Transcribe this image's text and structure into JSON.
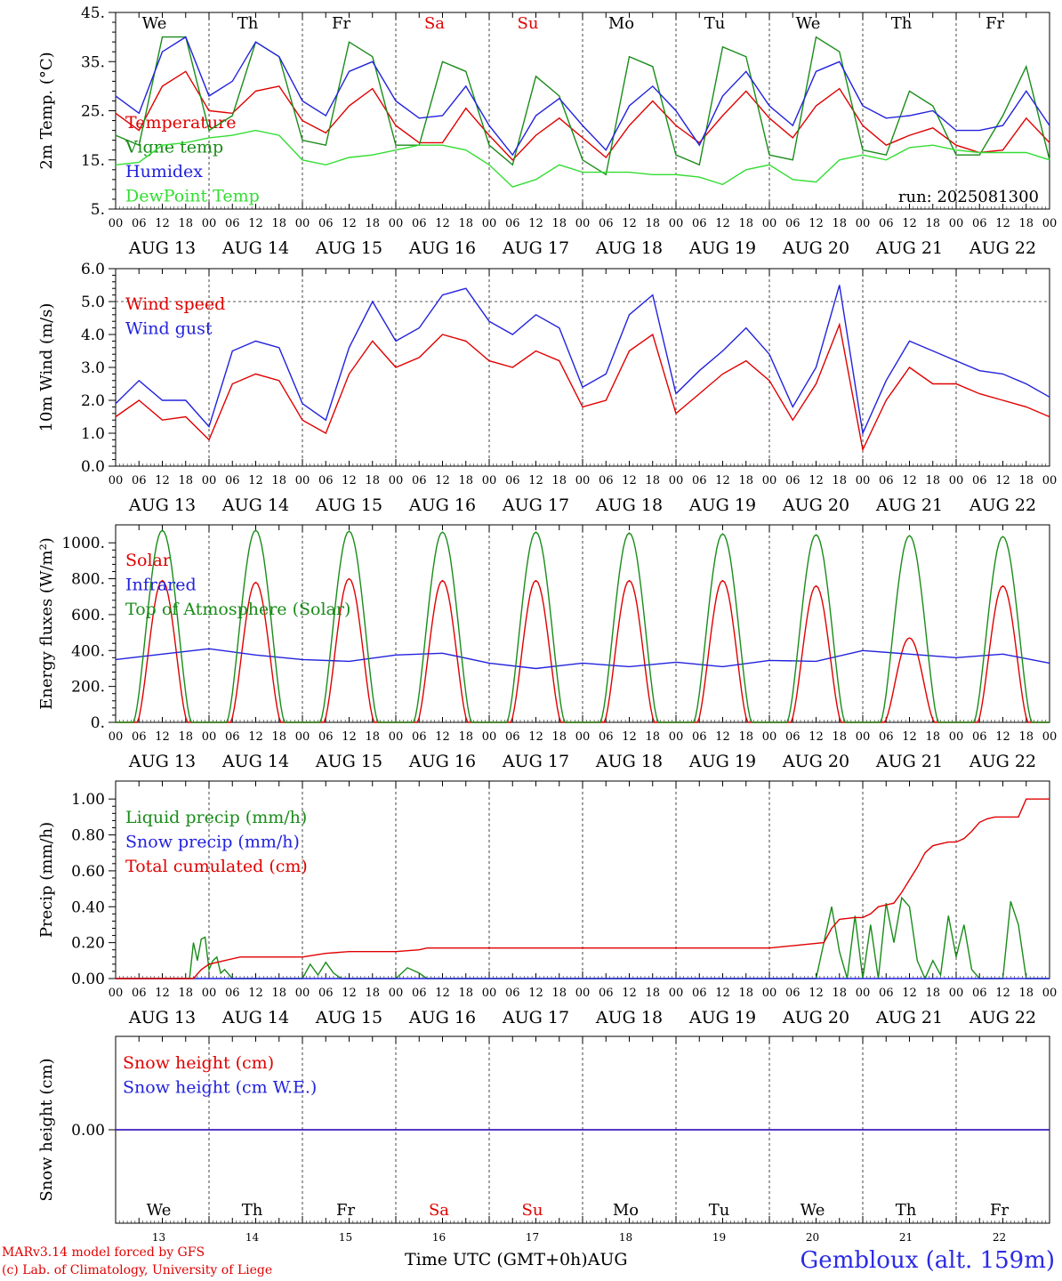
{
  "footer": {
    "model": "MARv3.14 model forced by GFS",
    "lab": "(c) Lab. of Climatology, University of Liege",
    "station": "Gembloux (alt. 159m)",
    "x_title": "Time UTC (GMT+0h)AUG"
  },
  "days": {
    "weekday_top": [
      "We",
      "Th",
      "Fr",
      "Sa",
      "Su",
      "Mo",
      "Tu",
      "We",
      "Th",
      "Fr"
    ],
    "weekday_colors": [
      "#000000",
      "#000000",
      "#000000",
      "#e00000",
      "#e00000",
      "#000000",
      "#000000",
      "#000000",
      "#000000",
      "#000000"
    ],
    "date_labels": [
      "AUG 13",
      "AUG 14",
      "AUG 15",
      "AUG 16",
      "AUG 17",
      "AUG 18",
      "AUG 19",
      "AUG 20",
      "AUG 21",
      "AUG 22"
    ],
    "day_numbers": [
      "13",
      "14",
      "15",
      "16",
      "17",
      "18",
      "19",
      "20",
      "21",
      "22"
    ],
    "hour_labels": [
      "00",
      "06",
      "12",
      "18"
    ],
    "final_hour": "00"
  },
  "chart_data": [
    {
      "type": "line",
      "ylabel": "2m Temp. (°C)",
      "ylim": [
        5,
        45
      ],
      "yticks": [
        "5.",
        "15.",
        "25.",
        "35.",
        "45."
      ],
      "annotation": "run: 2025081300",
      "x_unit": "hours since AUG 13 00 UTC",
      "series": [
        {
          "name": "Temperature",
          "color": "#e00000",
          "x": [
            0,
            6,
            12,
            18,
            24,
            30,
            36,
            42,
            48,
            54,
            60,
            66,
            72,
            78,
            84,
            90,
            96,
            102,
            108,
            114,
            120,
            126,
            132,
            138,
            144,
            150,
            156,
            162,
            168,
            174,
            180,
            186,
            192,
            198,
            204,
            210,
            216,
            222,
            228,
            234,
            240
          ],
          "values": [
            24.5,
            21,
            30,
            33,
            25,
            24.5,
            29,
            30,
            23,
            20.5,
            26,
            29.5,
            22,
            18.5,
            18.5,
            25.5,
            20,
            15,
            20,
            23.5,
            19.5,
            15.5,
            22,
            27,
            22,
            18.5,
            24,
            29,
            23.5,
            19.5,
            26,
            29.5,
            22,
            18,
            20,
            21.5,
            18,
            16.5,
            17,
            23.5,
            18.5
          ]
        },
        {
          "name": "Vigne temp",
          "color": "#1a8c1a",
          "x": [
            0,
            6,
            12,
            18,
            24,
            30,
            36,
            42,
            48,
            54,
            60,
            66,
            72,
            78,
            84,
            90,
            96,
            102,
            108,
            114,
            120,
            126,
            132,
            138,
            144,
            150,
            156,
            162,
            168,
            174,
            180,
            186,
            192,
            198,
            204,
            210,
            216,
            222,
            228,
            234,
            240
          ],
          "values": [
            20,
            18,
            40,
            40,
            21,
            24,
            39,
            36,
            19,
            18,
            39,
            36,
            18,
            18,
            35,
            33,
            18,
            14,
            32,
            28,
            15,
            12,
            36,
            34,
            16,
            14,
            38,
            36,
            16,
            15,
            40,
            37,
            17,
            16,
            29,
            26,
            16,
            16,
            24,
            34,
            15
          ]
        },
        {
          "name": "Humidex",
          "color": "#2222dd",
          "x": [
            0,
            6,
            12,
            18,
            24,
            30,
            36,
            42,
            48,
            54,
            60,
            66,
            72,
            78,
            84,
            90,
            96,
            102,
            108,
            114,
            120,
            126,
            132,
            138,
            144,
            150,
            156,
            162,
            168,
            174,
            180,
            186,
            192,
            198,
            204,
            210,
            216,
            222,
            228,
            234,
            240
          ],
          "values": [
            28,
            24.5,
            37,
            40,
            28,
            31,
            39,
            36,
            27,
            24,
            33,
            35,
            27,
            23.5,
            24,
            30,
            22,
            16,
            24,
            27.5,
            22,
            17,
            26,
            30,
            25,
            18,
            28,
            33,
            26,
            22,
            33,
            35,
            26,
            23.5,
            24,
            25,
            21,
            21,
            22,
            29,
            22
          ]
        },
        {
          "name": "DewPoint Temp",
          "color": "#33dd33",
          "x": [
            0,
            6,
            12,
            18,
            24,
            30,
            36,
            42,
            48,
            54,
            60,
            66,
            72,
            78,
            84,
            90,
            96,
            102,
            108,
            114,
            120,
            126,
            132,
            138,
            144,
            150,
            156,
            162,
            168,
            174,
            180,
            186,
            192,
            198,
            204,
            210,
            216,
            222,
            228,
            234,
            240
          ],
          "values": [
            14,
            14.5,
            18,
            18.5,
            19.5,
            20,
            21,
            20,
            15,
            14,
            15.5,
            16,
            17,
            18,
            18,
            17,
            14,
            9.5,
            11,
            14,
            12.5,
            12.5,
            12.5,
            12,
            12,
            11.5,
            10,
            13,
            14,
            11,
            10.5,
            15,
            16,
            15,
            17.5,
            18,
            17,
            16.5,
            16.5,
            16.5,
            15
          ]
        }
      ]
    },
    {
      "type": "line",
      "ylabel": "10m Wind (m/s)",
      "ylim": [
        0,
        6
      ],
      "yticks": [
        "0.0",
        "1.0",
        "2.0",
        "3.0",
        "4.0",
        "5.0",
        "6.0"
      ],
      "reference_line": 5.0,
      "series": [
        {
          "name": "Wind speed",
          "color": "#e00000",
          "x": [
            0,
            6,
            12,
            18,
            24,
            30,
            36,
            42,
            48,
            54,
            60,
            66,
            72,
            78,
            84,
            90,
            96,
            102,
            108,
            114,
            120,
            126,
            132,
            138,
            144,
            150,
            156,
            162,
            168,
            174,
            180,
            186,
            192,
            198,
            204,
            210,
            216,
            222,
            228,
            234,
            240
          ],
          "values": [
            1.5,
            2.0,
            1.4,
            1.5,
            0.8,
            2.5,
            2.8,
            2.6,
            1.4,
            1.0,
            2.8,
            3.8,
            3.0,
            3.3,
            4.0,
            3.8,
            3.2,
            3.0,
            3.5,
            3.2,
            1.8,
            2.0,
            3.5,
            4.0,
            1.6,
            2.2,
            2.8,
            3.2,
            2.6,
            1.4,
            2.5,
            4.3,
            0.5,
            2.0,
            3.0,
            2.5,
            2.5,
            2.2,
            2.0,
            1.8,
            1.5
          ]
        },
        {
          "name": "Wind gust",
          "color": "#2222dd",
          "x": [
            0,
            6,
            12,
            18,
            24,
            30,
            36,
            42,
            48,
            54,
            60,
            66,
            72,
            78,
            84,
            90,
            96,
            102,
            108,
            114,
            120,
            126,
            132,
            138,
            144,
            150,
            156,
            162,
            168,
            174,
            180,
            186,
            192,
            198,
            204,
            210,
            216,
            222,
            228,
            234,
            240
          ],
          "values": [
            1.9,
            2.6,
            2.0,
            2.0,
            1.2,
            3.5,
            3.8,
            3.6,
            1.9,
            1.4,
            3.6,
            5.0,
            3.8,
            4.2,
            5.2,
            5.4,
            4.4,
            4.0,
            4.6,
            4.2,
            2.4,
            2.8,
            4.6,
            5.2,
            2.2,
            2.9,
            3.5,
            4.2,
            3.4,
            1.8,
            3.0,
            5.5,
            1.0,
            2.6,
            3.8,
            3.5,
            3.2,
            2.9,
            2.8,
            2.5,
            2.1
          ]
        }
      ]
    },
    {
      "type": "line",
      "ylabel": "Energy fluxes (W/m²)",
      "ylim": [
        0,
        1100
      ],
      "yticks": [
        "0.",
        "200.",
        "400.",
        "600.",
        "800.",
        "1000."
      ],
      "series": [
        {
          "name": "Solar",
          "color": "#e00000",
          "day_peaks": [
            790,
            780,
            800,
            790,
            790,
            790,
            790,
            760,
            470,
            760
          ]
        },
        {
          "name": "Infrared",
          "color": "#2222dd",
          "x": [
            0,
            12,
            24,
            36,
            48,
            60,
            72,
            84,
            96,
            108,
            120,
            132,
            144,
            156,
            168,
            180,
            192,
            204,
            216,
            228,
            240
          ],
          "values": [
            350,
            380,
            410,
            375,
            350,
            340,
            375,
            385,
            330,
            300,
            330,
            310,
            335,
            310,
            345,
            340,
            400,
            380,
            360,
            380,
            330
          ]
        },
        {
          "name": "Top of Atmosphere (Solar)",
          "color": "#1a8c1a",
          "day_peaks": [
            1070,
            1070,
            1065,
            1060,
            1060,
            1055,
            1050,
            1045,
            1040,
            1035
          ]
        }
      ]
    },
    {
      "type": "line",
      "ylabel": "Precip (mm/h)",
      "ylim": [
        0,
        1.1
      ],
      "yticks": [
        "0.00",
        "0.20",
        "0.40",
        "0.60",
        "0.80",
        "1.00"
      ],
      "series": [
        {
          "name": "Liquid precip (mm/h)",
          "color": "#1a8c1a",
          "x": [
            0,
            19,
            20,
            21,
            22,
            23,
            24,
            25,
            26,
            27,
            28,
            30,
            48,
            50,
            52,
            54,
            56,
            58,
            60,
            72,
            75,
            78,
            80,
            84,
            96,
            120,
            168,
            180,
            182,
            184,
            186,
            188,
            190,
            192,
            194,
            196,
            198,
            200,
            202,
            204,
            206,
            208,
            210,
            212,
            214,
            216,
            218,
            220,
            222,
            224,
            226,
            228,
            230,
            232,
            234,
            236,
            240
          ],
          "values": [
            0,
            0,
            0.2,
            0.1,
            0.22,
            0.23,
            0.05,
            0.1,
            0.12,
            0.03,
            0.05,
            0,
            0,
            0.08,
            0.02,
            0.09,
            0.03,
            0,
            0,
            0,
            0.06,
            0.03,
            0,
            0,
            0,
            0,
            0,
            0,
            0.2,
            0.4,
            0.15,
            0,
            0.35,
            0,
            0.3,
            0,
            0.42,
            0.2,
            0.45,
            0.4,
            0.1,
            0,
            0.1,
            0.02,
            0.35,
            0.12,
            0.3,
            0.05,
            0,
            0,
            0,
            0,
            0.43,
            0.3,
            0,
            0,
            0
          ]
        },
        {
          "name": "Snow precip (mm/h)",
          "color": "#2222dd",
          "x": [
            0,
            240
          ],
          "values": [
            0,
            0
          ]
        },
        {
          "name": "Total cumulated (cm)",
          "color": "#e00000",
          "x": [
            0,
            20,
            22,
            24,
            28,
            32,
            36,
            48,
            54,
            60,
            72,
            78,
            80,
            84,
            96,
            120,
            168,
            182,
            184,
            186,
            190,
            192,
            194,
            196,
            200,
            202,
            204,
            206,
            208,
            210,
            212,
            214,
            216,
            218,
            220,
            222,
            224,
            226,
            228,
            232,
            234,
            240
          ],
          "values": [
            0,
            0,
            0.05,
            0.08,
            0.1,
            0.12,
            0.12,
            0.12,
            0.14,
            0.15,
            0.15,
            0.16,
            0.17,
            0.17,
            0.17,
            0.17,
            0.17,
            0.2,
            0.28,
            0.33,
            0.34,
            0.34,
            0.36,
            0.4,
            0.42,
            0.48,
            0.55,
            0.62,
            0.7,
            0.74,
            0.75,
            0.76,
            0.76,
            0.78,
            0.82,
            0.87,
            0.89,
            0.9,
            0.9,
            0.9,
            1.0,
            1.0
          ]
        }
      ]
    },
    {
      "type": "line",
      "ylabel": "Snow height (cm)",
      "ylim": [
        -1,
        1
      ],
      "yticks": [
        "0.00"
      ],
      "series": [
        {
          "name": "Snow height (cm)",
          "color": "#e00000",
          "x": [
            0,
            240
          ],
          "values": [
            0,
            0
          ]
        },
        {
          "name": "Snow height (cm W.E.)",
          "color": "#2222dd",
          "x": [
            0,
            240
          ],
          "values": [
            0,
            0
          ]
        }
      ]
    }
  ]
}
